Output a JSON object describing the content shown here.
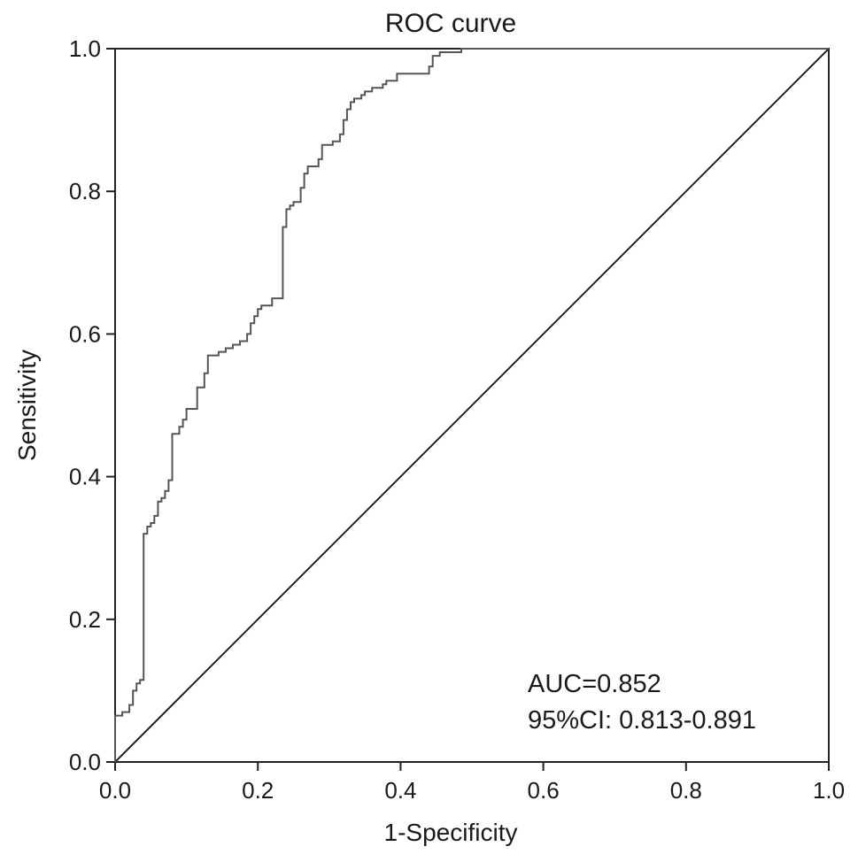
{
  "chart_data": {
    "type": "line",
    "title": "ROC curve",
    "xlabel": "1-Specificity",
    "ylabel": "Sensitivity",
    "xlim": [
      0,
      1
    ],
    "ylim": [
      0,
      1
    ],
    "x_ticks": [
      "0.0",
      "0.2",
      "0.4",
      "0.6",
      "0.8",
      "1.0"
    ],
    "y_ticks": [
      "0.0",
      "0.2",
      "0.4",
      "0.6",
      "0.8",
      "1.0"
    ],
    "grid": false,
    "annotations": [
      "AUC=0.852",
      "95%CI: 0.813-0.891"
    ],
    "colors": {
      "curve": "#555555",
      "reference": "#222222",
      "axes": "#222222"
    },
    "series": [
      {
        "values": [
          [
            0.0,
            0.0
          ],
          [
            0.0,
            0.065
          ],
          [
            0.01,
            0.065
          ],
          [
            0.01,
            0.07
          ],
          [
            0.02,
            0.07
          ],
          [
            0.02,
            0.08
          ],
          [
            0.025,
            0.08
          ],
          [
            0.025,
            0.1
          ],
          [
            0.03,
            0.1
          ],
          [
            0.03,
            0.11
          ],
          [
            0.035,
            0.11
          ],
          [
            0.035,
            0.115
          ],
          [
            0.04,
            0.115
          ],
          [
            0.04,
            0.32
          ],
          [
            0.045,
            0.32
          ],
          [
            0.045,
            0.33
          ],
          [
            0.05,
            0.33
          ],
          [
            0.05,
            0.335
          ],
          [
            0.055,
            0.335
          ],
          [
            0.055,
            0.345
          ],
          [
            0.06,
            0.345
          ],
          [
            0.06,
            0.365
          ],
          [
            0.065,
            0.365
          ],
          [
            0.065,
            0.37
          ],
          [
            0.07,
            0.37
          ],
          [
            0.07,
            0.38
          ],
          [
            0.075,
            0.38
          ],
          [
            0.075,
            0.395
          ],
          [
            0.08,
            0.395
          ],
          [
            0.08,
            0.46
          ],
          [
            0.09,
            0.46
          ],
          [
            0.09,
            0.47
          ],
          [
            0.095,
            0.47
          ],
          [
            0.095,
            0.48
          ],
          [
            0.1,
            0.48
          ],
          [
            0.1,
            0.495
          ],
          [
            0.115,
            0.495
          ],
          [
            0.115,
            0.525
          ],
          [
            0.125,
            0.525
          ],
          [
            0.125,
            0.545
          ],
          [
            0.13,
            0.545
          ],
          [
            0.13,
            0.57
          ],
          [
            0.145,
            0.57
          ],
          [
            0.145,
            0.575
          ],
          [
            0.155,
            0.575
          ],
          [
            0.155,
            0.58
          ],
          [
            0.165,
            0.58
          ],
          [
            0.165,
            0.585
          ],
          [
            0.175,
            0.585
          ],
          [
            0.175,
            0.59
          ],
          [
            0.185,
            0.59
          ],
          [
            0.185,
            0.6
          ],
          [
            0.19,
            0.6
          ],
          [
            0.19,
            0.615
          ],
          [
            0.195,
            0.615
          ],
          [
            0.195,
            0.625
          ],
          [
            0.2,
            0.625
          ],
          [
            0.2,
            0.635
          ],
          [
            0.205,
            0.635
          ],
          [
            0.205,
            0.64
          ],
          [
            0.22,
            0.64
          ],
          [
            0.22,
            0.65
          ],
          [
            0.235,
            0.65
          ],
          [
            0.235,
            0.75
          ],
          [
            0.24,
            0.75
          ],
          [
            0.24,
            0.775
          ],
          [
            0.245,
            0.775
          ],
          [
            0.245,
            0.78
          ],
          [
            0.25,
            0.78
          ],
          [
            0.25,
            0.785
          ],
          [
            0.26,
            0.785
          ],
          [
            0.26,
            0.805
          ],
          [
            0.265,
            0.805
          ],
          [
            0.265,
            0.825
          ],
          [
            0.27,
            0.825
          ],
          [
            0.27,
            0.835
          ],
          [
            0.285,
            0.835
          ],
          [
            0.285,
            0.845
          ],
          [
            0.29,
            0.845
          ],
          [
            0.29,
            0.865
          ],
          [
            0.305,
            0.865
          ],
          [
            0.305,
            0.87
          ],
          [
            0.315,
            0.87
          ],
          [
            0.315,
            0.88
          ],
          [
            0.32,
            0.88
          ],
          [
            0.32,
            0.9
          ],
          [
            0.325,
            0.9
          ],
          [
            0.325,
            0.915
          ],
          [
            0.33,
            0.915
          ],
          [
            0.33,
            0.925
          ],
          [
            0.335,
            0.925
          ],
          [
            0.335,
            0.93
          ],
          [
            0.345,
            0.93
          ],
          [
            0.345,
            0.935
          ],
          [
            0.35,
            0.935
          ],
          [
            0.35,
            0.94
          ],
          [
            0.36,
            0.94
          ],
          [
            0.36,
            0.945
          ],
          [
            0.375,
            0.945
          ],
          [
            0.375,
            0.95
          ],
          [
            0.38,
            0.95
          ],
          [
            0.38,
            0.955
          ],
          [
            0.395,
            0.955
          ],
          [
            0.395,
            0.965
          ],
          [
            0.44,
            0.965
          ],
          [
            0.44,
            0.975
          ],
          [
            0.445,
            0.975
          ],
          [
            0.445,
            0.99
          ],
          [
            0.455,
            0.99
          ],
          [
            0.455,
            0.995
          ],
          [
            0.485,
            0.995
          ],
          [
            0.485,
            1.0
          ],
          [
            1.0,
            1.0
          ]
        ]
      },
      {
        "values": [
          [
            0,
            0
          ],
          [
            1,
            1
          ]
        ]
      }
    ]
  }
}
